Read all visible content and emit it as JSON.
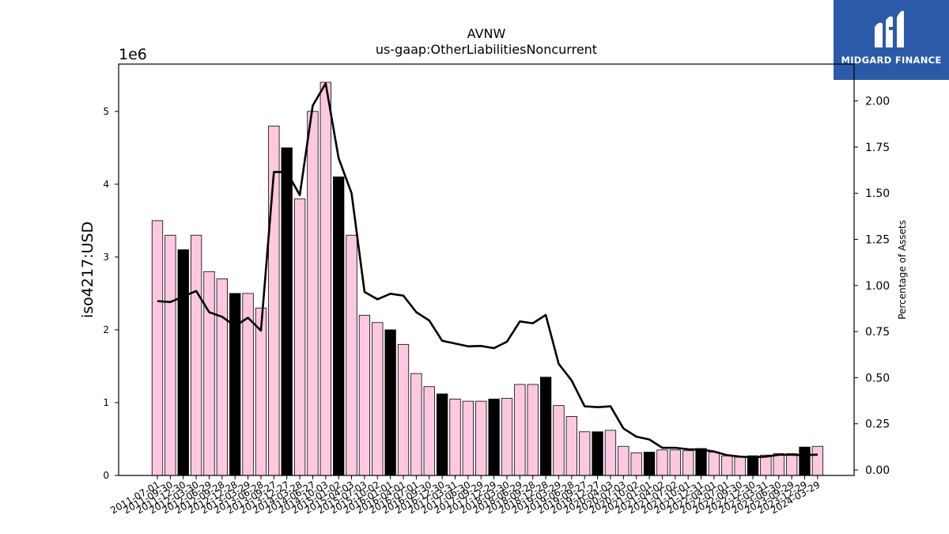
{
  "brand": {
    "name": "MIDGARD FINANCE",
    "bg_color": "#2b5aa8",
    "icon": "midgard-logo-icon"
  },
  "chart_data": {
    "type": "bar",
    "title": "AVNW",
    "subtitle": "us-gaap:OtherLiabilitiesNoncurrent",
    "ylabel": "iso4217:USD",
    "y_scale_label": "1e6",
    "y2label": "Percentage of Assets",
    "ylim": [
      0,
      5.65
    ],
    "y2lim": [
      -0.03,
      2.2
    ],
    "y_ticks": [
      0,
      1,
      2,
      3,
      4,
      5
    ],
    "y_tick_labels": [
      "0",
      "1",
      "2",
      "3",
      "4",
      "5"
    ],
    "y2_ticks": [
      0,
      0.25,
      0.5,
      0.75,
      1.0,
      1.25,
      1.5,
      1.75,
      2.0
    ],
    "y2_tick_labels": [
      "0.00",
      "0.25",
      "0.50",
      "0.75",
      "1.00",
      "1.25",
      "1.50",
      "1.75",
      "2.00"
    ],
    "colors": {
      "quarter": "#ffc8e0",
      "annual": "#000000",
      "line": "#000000"
    },
    "categories": [
      "2011-07-01",
      "2011-09-30",
      "2011-12-30",
      "2012-03-30",
      "2012-06-29",
      "2012-09-28",
      "2012-12-28",
      "2013-03-29",
      "2013-06-28",
      "2013-09-27",
      "2013-12-27",
      "2014-03-28",
      "2014-06-27",
      "2014-10-03",
      "2015-01-02",
      "2015-04-03",
      "2015-07-03",
      "2015-10-02",
      "2016-01-01",
      "2016-04-01",
      "2016-07-01",
      "2016-09-30",
      "2016-12-30",
      "2017-03-31",
      "2017-06-30",
      "2017-09-29",
      "2017-12-29",
      "2018-03-30",
      "2018-06-29",
      "2018-09-28",
      "2018-12-28",
      "2019-03-29",
      "2019-06-28",
      "2019-09-27",
      "2019-12-27",
      "2020-04-03",
      "2020-07-03",
      "2020-10-02",
      "2021-01-01",
      "2021-04-02",
      "2021-07-02",
      "2021-10-01",
      "2021-12-31",
      "2022-04-01",
      "2022-07-01",
      "2022-09-30",
      "2022-12-30",
      "2023-03-31",
      "2023-06-30",
      "2023-09-29",
      "2023-12-29",
      "2024-03-29"
    ],
    "tick_labels": [
      "2011-07-01",
      "2011-09-30",
      "2011-12-30",
      "2012-03-30",
      "2012-06-29",
      "2012-09-28",
      "2012-12-28",
      "2013-03-29",
      "2013-06-28",
      "2013-09-27",
      "2013-12-27",
      "2014-03-28",
      "2014-06-27",
      "2014-10-03",
      "2015-01-02",
      "2015-04-03",
      "2015-07-03",
      "2015-10-02",
      "2016-01-01",
      "2016-04-01",
      "2016-07-01",
      "2016-09-30",
      "2016-12-30",
      "2017-03-31",
      "2017-06-30",
      "2017-09-29",
      "2017-12-29",
      "2018-03-30",
      "2018-06-29",
      "2018-09-28",
      "2018-12-28",
      "2019-03-29",
      "2019-06-28",
      "2019-09-27",
      "2019-12-27",
      "2020-04-03",
      "2020-07-03",
      "2020-10-02",
      "2021-01-01",
      "2021-04-02",
      "2021-07-02",
      "2021-10-01",
      "2021-12-31",
      "2022-04-01",
      "2022-07-01",
      "2022-09-30",
      "2022-12-30",
      "2023-03-31",
      "2023-06-30",
      "2023-09-29",
      "2023-12-29",
      "2024-03-29"
    ],
    "series": [
      {
        "kind": "bar",
        "values": [
          3.5,
          3.3,
          3.1,
          3.3,
          2.8,
          2.7,
          2.5,
          2.5,
          2.3,
          4.8,
          4.5,
          3.8,
          5.0,
          5.4,
          4.1,
          3.3,
          2.2,
          2.1,
          2.0,
          1.8,
          1.4,
          1.22,
          1.12,
          1.05,
          1.02,
          1.02,
          1.05,
          1.06,
          1.25,
          1.25,
          1.35,
          0.96,
          0.81,
          0.6,
          0.6,
          0.62,
          0.4,
          0.31,
          0.32,
          0.35,
          0.35,
          0.34,
          0.37,
          0.32,
          0.27,
          0.25,
          0.27,
          0.28,
          0.3,
          0.3,
          0.39,
          0.4
        ],
        "annual": [
          false,
          false,
          true,
          false,
          false,
          false,
          true,
          false,
          false,
          false,
          true,
          false,
          false,
          false,
          true,
          false,
          false,
          false,
          true,
          false,
          false,
          false,
          true,
          false,
          false,
          false,
          true,
          false,
          false,
          false,
          true,
          false,
          false,
          false,
          true,
          false,
          false,
          false,
          true,
          false,
          false,
          false,
          true,
          false,
          false,
          false,
          true,
          false,
          false,
          false,
          true,
          false
        ]
      },
      {
        "kind": "line",
        "axis": "right",
        "values": [
          0.915,
          0.91,
          0.94,
          0.97,
          0.855,
          0.83,
          0.78,
          0.825,
          0.755,
          1.615,
          1.615,
          1.49,
          1.975,
          2.095,
          1.69,
          1.5,
          0.965,
          0.925,
          0.955,
          0.945,
          0.855,
          0.81,
          0.7,
          0.685,
          0.67,
          0.672,
          0.66,
          0.695,
          0.805,
          0.795,
          0.84,
          0.575,
          0.485,
          0.345,
          0.34,
          0.345,
          0.225,
          0.18,
          0.165,
          0.12,
          0.12,
          0.112,
          0.11,
          0.1,
          0.08,
          0.072,
          0.068,
          0.072,
          0.082,
          0.082,
          0.08,
          0.083
        ]
      }
    ]
  }
}
